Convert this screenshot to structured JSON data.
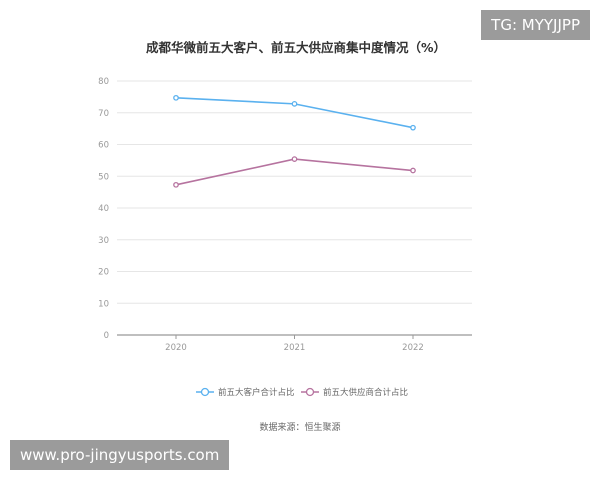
{
  "chart_data": {
    "type": "line",
    "title": "成都华微前五大客户、前五大供应商集中度情况（%）",
    "x": [
      "2020",
      "2021",
      "2022"
    ],
    "series": [
      {
        "name": "前五大客户合计占比",
        "values": [
          74.7,
          72.8,
          65.3
        ],
        "color": "#5ab1ef"
      },
      {
        "name": "前五大供应商合计占比",
        "values": [
          47.3,
          55.4,
          51.8
        ],
        "color": "#b6739f"
      }
    ],
    "ylim": [
      0,
      80
    ],
    "yticks": [
      "0",
      "10",
      "20",
      "30",
      "40",
      "50",
      "60",
      "70",
      "80"
    ],
    "grid": true,
    "legend": "bottom",
    "source": "数据来源：恒生聚源"
  },
  "watermarks": {
    "top_right": "TG: MYYJJPP",
    "bottom_left": "www.pro-jingyusports.com"
  }
}
